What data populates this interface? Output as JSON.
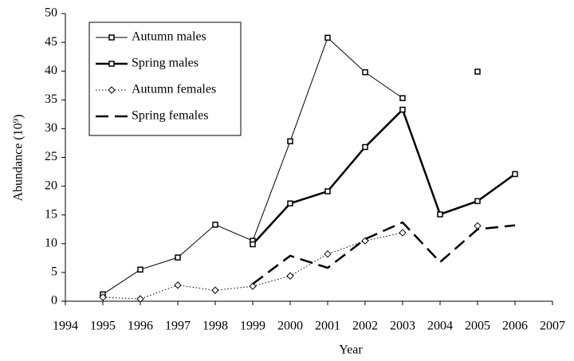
{
  "chart_data": {
    "type": "line",
    "x_label": "Year",
    "y_label": "Abundance (10⁹)",
    "x": [
      1995,
      1996,
      1997,
      1998,
      1999,
      2000,
      2001,
      2002,
      2003,
      2004,
      2005,
      2006
    ],
    "series": [
      {
        "name": "Autumn males",
        "color": "#000000",
        "width": 1,
        "dash": "none",
        "marker": "square",
        "values": [
          1.2,
          5.5,
          7.6,
          13.3,
          10.5,
          27.8,
          45.8,
          39.8,
          35.3,
          null,
          39.9,
          null
        ]
      },
      {
        "name": "Spring males",
        "color": "#000000",
        "width": 2.5,
        "dash": "none",
        "marker": "square",
        "values": [
          null,
          null,
          null,
          null,
          9.9,
          17,
          19.1,
          26.8,
          33.3,
          15.1,
          17.4,
          22.1
        ]
      },
      {
        "name": "Autumn females",
        "color": "#000000",
        "width": 1,
        "dash": "1.5 2.5",
        "marker": "diamond",
        "values": [
          0.7,
          0.4,
          2.8,
          1.9,
          2.6,
          4.4,
          8.2,
          10.5,
          11.9,
          null,
          13.1,
          null
        ]
      },
      {
        "name": "Spring females",
        "color": "#000000",
        "width": 2.5,
        "dash": "16 8",
        "marker": null,
        "values": [
          null,
          null,
          null,
          null,
          3,
          7.9,
          5.8,
          10.8,
          13.7,
          6.8,
          12.5,
          13.2
        ]
      }
    ],
    "xlim": [
      1994,
      2007
    ],
    "xticks": [
      1994,
      1995,
      1996,
      1997,
      1998,
      1999,
      2000,
      2001,
      2002,
      2003,
      2004,
      2005,
      2006,
      2007
    ],
    "ylim": [
      0,
      50
    ],
    "yticks": [
      0,
      5,
      10,
      15,
      20,
      25,
      30,
      35,
      40,
      45,
      50
    ],
    "grid": false
  }
}
